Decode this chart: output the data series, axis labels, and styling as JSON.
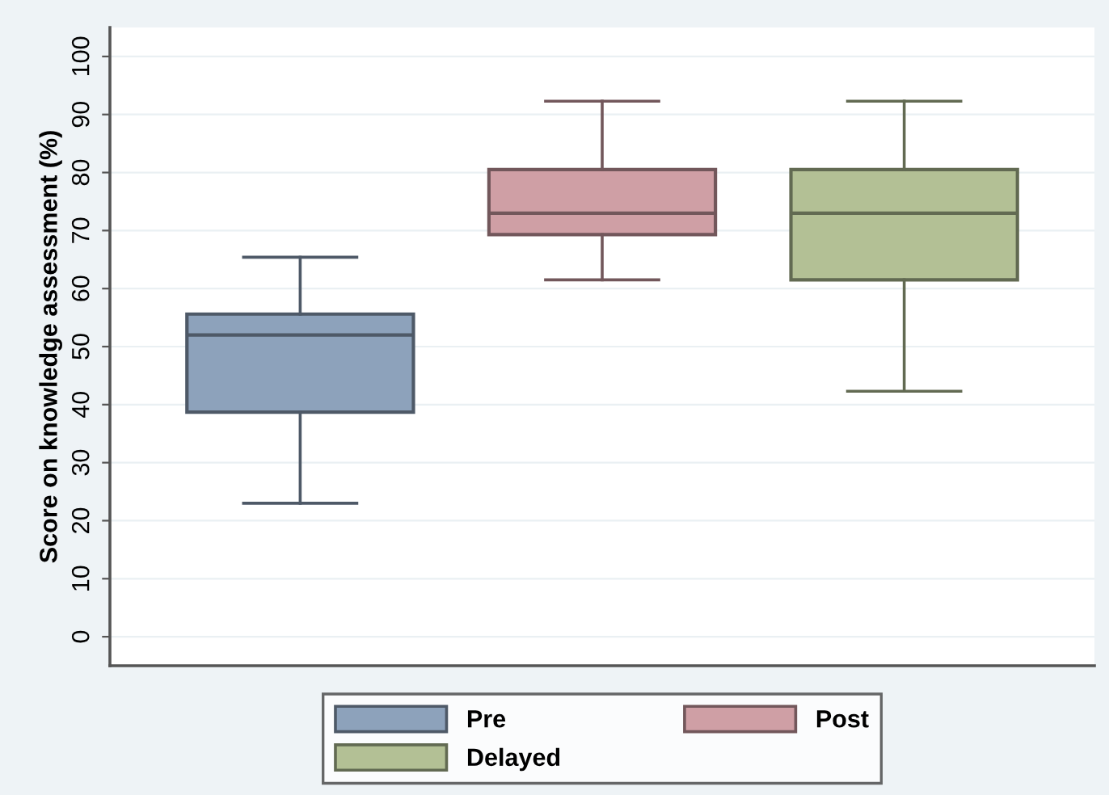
{
  "chart_data": {
    "type": "box",
    "ylabel": "Score on knowledge assessment (%)",
    "categories": [
      null,
      null,
      null
    ],
    "series": [
      {
        "name": "Pre",
        "color": "#8da2bb",
        "boxes": [
          {
            "low": 23,
            "q1": 38.7,
            "median": 52,
            "q3": 55.6,
            "high": 65.4
          },
          null,
          null
        ]
      },
      {
        "name": "Post",
        "color": "#cf9fa5",
        "boxes": [
          null,
          {
            "low": 61.5,
            "q1": 69.3,
            "median": 73,
            "q3": 80.5,
            "high": 92.3
          },
          null
        ]
      },
      {
        "name": "Delayed",
        "color": "#b3c095",
        "boxes": [
          null,
          null,
          {
            "low": 42.3,
            "q1": 61.5,
            "median": 73,
            "q3": 80.5,
            "high": 92.3
          }
        ]
      }
    ],
    "ylim": [
      -5,
      105
    ],
    "yticks": [
      0,
      10,
      20,
      30,
      40,
      50,
      60,
      70,
      80,
      90,
      100
    ],
    "grid": "y",
    "legend": "bottom"
  }
}
